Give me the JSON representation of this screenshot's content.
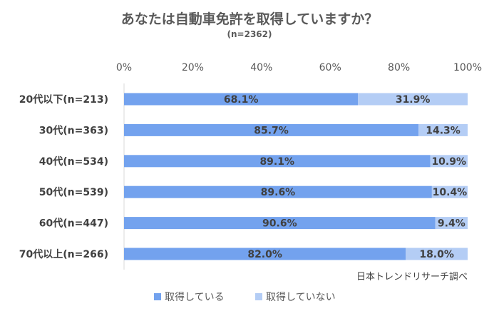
{
  "chart_data": {
    "type": "bar",
    "orientation": "horizontal",
    "stacked": true,
    "title": "あなたは自動車免許を取得していますか？",
    "subtitle": "(n=2362)",
    "categories": [
      "20代以下(n=213)",
      "30代(n=363)",
      "40代(n=534)",
      "50代(n=539)",
      "60代(n=447)",
      "70代以上(n=266)"
    ],
    "series": [
      {
        "name": "取得している",
        "color": "#73A2EE",
        "values": [
          68.1,
          85.7,
          89.1,
          89.6,
          90.6,
          82.0
        ],
        "labels": [
          "68.1%",
          "85.7%",
          "89.1%",
          "89.6%",
          "90.6%",
          "82.0%"
        ]
      },
      {
        "name": "取得していない",
        "color": "#B4CDF5",
        "values": [
          31.9,
          14.3,
          10.9,
          10.4,
          9.4,
          18.0
        ],
        "labels": [
          "31.9%",
          "14.3%",
          "10.9%",
          "10.4%",
          "9.4%",
          "18.0%"
        ]
      }
    ],
    "xlim": [
      0,
      100
    ],
    "x_ticks": [
      "0%",
      "20%",
      "40%",
      "60%",
      "80%",
      "100%"
    ],
    "x_tick_values": [
      0,
      20,
      40,
      60,
      80,
      100
    ],
    "x_axis_position": "top",
    "grid": false,
    "legend_position": "bottom",
    "source": "日本トレンドリサーチ調べ"
  }
}
